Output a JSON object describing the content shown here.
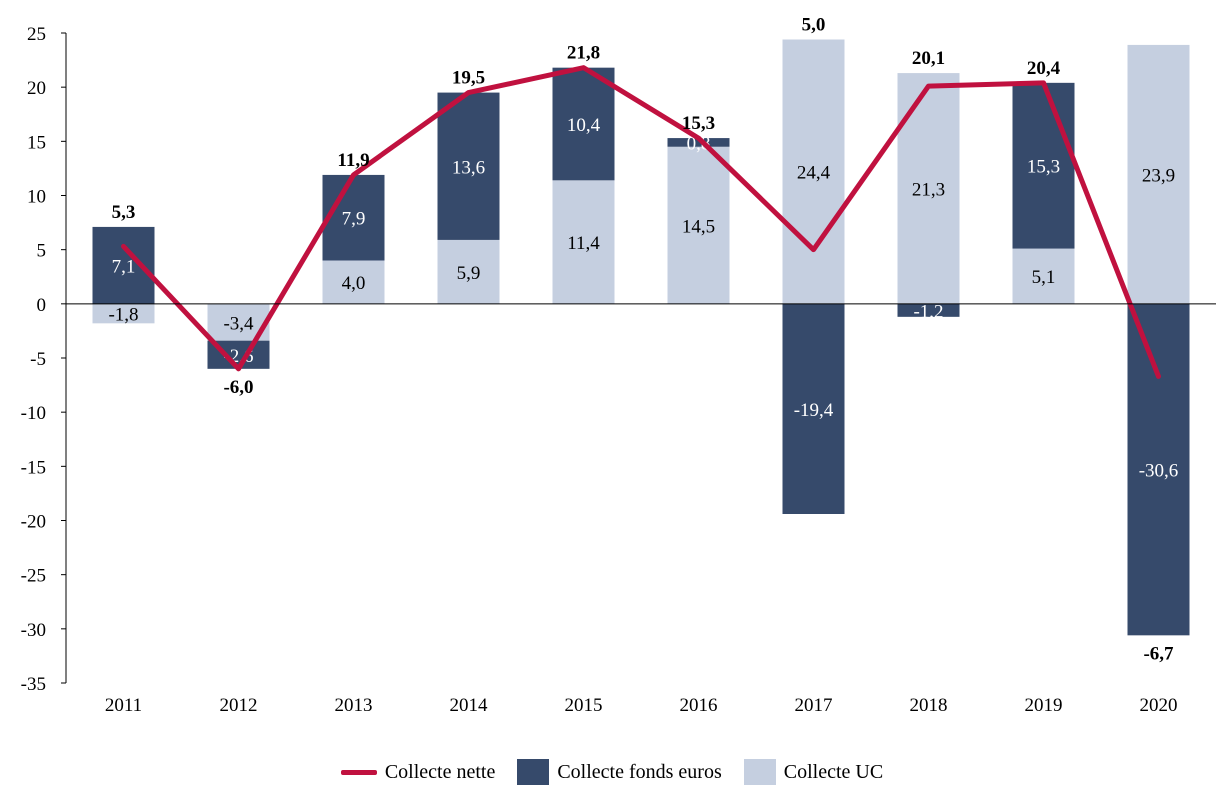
{
  "chart_data": {
    "type": "bar",
    "stacked": true,
    "categories": [
      "2011",
      "2012",
      "2013",
      "2014",
      "2015",
      "2016",
      "2017",
      "2018",
      "2019",
      "2020"
    ],
    "ylim": [
      -35,
      25
    ],
    "yticks": [
      25,
      20,
      15,
      10,
      5,
      0,
      -5,
      -10,
      -15,
      -20,
      -25,
      -30,
      -35
    ],
    "ytick_labels": [
      "25",
      "20",
      "15",
      "10",
      "5",
      "0",
      "-5",
      "-10",
      "-15",
      "-20",
      "-25",
      "-30",
      "-35"
    ],
    "series": [
      {
        "name": "Collecte fonds euros",
        "type": "bar",
        "values": [
          7.1,
          -2.6,
          7.9,
          13.6,
          10.4,
          0.8,
          -19.4,
          -1.2,
          15.3,
          -30.6
        ],
        "labels": [
          "7,1",
          "-2,6",
          "7,9",
          "13,6",
          "10,4",
          "0,8",
          "-19,4",
          "-1,2",
          "15,3",
          "-30,6"
        ]
      },
      {
        "name": "Collecte UC",
        "type": "bar",
        "values": [
          -1.8,
          -3.4,
          4.0,
          5.9,
          11.4,
          14.5,
          24.4,
          21.3,
          5.1,
          23.9
        ],
        "labels": [
          "-1,8",
          "-3,4",
          "4,0",
          "5,9",
          "11,4",
          "14,5",
          "24,4",
          "21,3",
          "5,1",
          "23,9"
        ]
      },
      {
        "name": "Collecte nette",
        "type": "line",
        "values": [
          5.3,
          -6.0,
          11.9,
          19.5,
          21.8,
          15.3,
          5.0,
          20.1,
          20.4,
          -6.7
        ],
        "labels": [
          "5,3",
          "-6,0",
          "11,9",
          "19,5",
          "21,8",
          "15,3",
          "5,0",
          "20,1",
          "20,4",
          "-6,7"
        ]
      }
    ],
    "legend": {
      "position": "bottom",
      "items": [
        {
          "label": "Collecte nette",
          "kind": "line",
          "color": "#c0113f"
        },
        {
          "label": "Collecte fonds euros",
          "kind": "box",
          "color": "#364a6b"
        },
        {
          "label": "Collecte UC",
          "kind": "box",
          "color": "#c5cfe0"
        }
      ]
    },
    "colors": {
      "euros": "#364a6b",
      "uc": "#c5cfe0",
      "net": "#c0113f"
    }
  }
}
